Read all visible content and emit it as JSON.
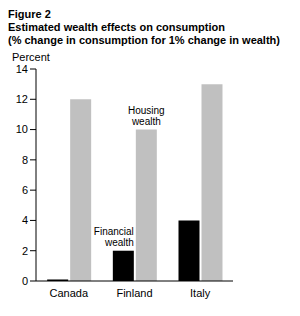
{
  "chart_data": {
    "type": "bar",
    "title": "Figure 2",
    "subtitle": [
      "Estimated wealth effects on consumption",
      "(% change in consumption for 1% change in wealth)"
    ],
    "y_label": "Percent",
    "categories": [
      "Canada",
      "Finland",
      "Italy"
    ],
    "series": [
      {
        "name": "Financial wealth",
        "color": "#000000",
        "values": [
          0.1,
          2,
          4
        ]
      },
      {
        "name": "Housing wealth",
        "color": "#c0c0c0",
        "values": [
          12,
          10,
          13
        ]
      }
    ],
    "ylim": [
      0,
      14
    ],
    "yticks": [
      0,
      2,
      4,
      6,
      8,
      10,
      12,
      14
    ],
    "grid": false
  }
}
